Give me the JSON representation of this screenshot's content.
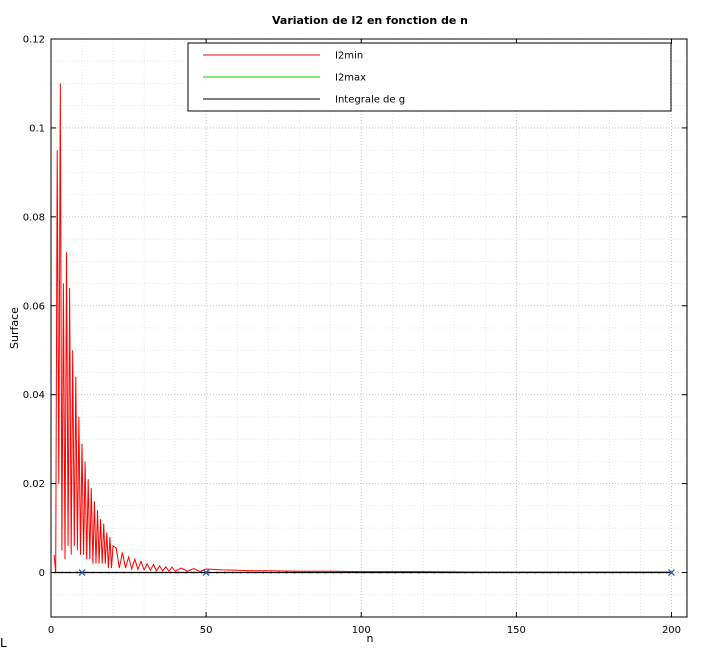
{
  "chart_data": {
    "type": "line",
    "title": "Variation de I2 en fonction de n",
    "xlabel": "n",
    "ylabel": "Surface",
    "xlim": [
      0,
      205
    ],
    "ylim": [
      -0.01,
      0.12
    ],
    "xticks": [
      0,
      50,
      100,
      150,
      200
    ],
    "xtick_labels": [
      "0",
      "50",
      "100",
      "150",
      "200"
    ],
    "yticks": [
      0,
      0.02,
      0.04,
      0.06,
      0.08,
      0.1,
      0.12
    ],
    "ytick_labels": [
      "0",
      "0.02",
      "0.04",
      "0.06",
      "0.08",
      "0.1",
      "0.12"
    ],
    "grid": true,
    "legend_position": "top-right",
    "series": [
      {
        "name": "I2min",
        "color": "#ff0000",
        "x": [
          1,
          1.5,
          2,
          2.5,
          3,
          3.5,
          4,
          4.5,
          5,
          5.5,
          6,
          6.5,
          7,
          7.5,
          8,
          8.5,
          9,
          9.5,
          10,
          10.5,
          11,
          11.5,
          12,
          12.5,
          13,
          13.5,
          14,
          14.5,
          15,
          15.5,
          16,
          16.5,
          17,
          17.5,
          18,
          18.5,
          19,
          19.5,
          20,
          21,
          22,
          23,
          24,
          25,
          26,
          27,
          28,
          29,
          30,
          31,
          32,
          33,
          34,
          35,
          36,
          37,
          38,
          39,
          40,
          42,
          44,
          46,
          48,
          50,
          55,
          60,
          65,
          70,
          80,
          90,
          100,
          120,
          140,
          160,
          180,
          200
        ],
        "values": [
          0.004,
          0.0,
          0.095,
          0.02,
          0.11,
          0.005,
          0.065,
          0.003,
          0.072,
          0.006,
          0.064,
          0.004,
          0.05,
          0.006,
          0.044,
          0.005,
          0.035,
          0.004,
          0.029,
          0.004,
          0.025,
          0.003,
          0.021,
          0.003,
          0.019,
          0.002,
          0.016,
          0.002,
          0.014,
          0.002,
          0.012,
          0.002,
          0.011,
          0.002,
          0.009,
          0.001,
          0.008,
          0.001,
          0.006,
          0.0055,
          0.001,
          0.0045,
          0.001,
          0.0035,
          0.0008,
          0.003,
          0.0007,
          0.0025,
          0.0006,
          0.002,
          0.0005,
          0.0018,
          0.0004,
          0.0015,
          0.0004,
          0.0013,
          0.0003,
          0.0012,
          0.0003,
          0.001,
          0.0003,
          0.0009,
          0.0002,
          0.0008,
          0.0006,
          0.0005,
          0.0004,
          0.0004,
          0.0003,
          0.0003,
          0.0002,
          0.0002,
          0.0001,
          0.0001,
          0.0001,
          0.0001
        ]
      },
      {
        "name": "I2max",
        "color": "#00cc00",
        "x": [
          1,
          200
        ],
        "values": [
          0,
          0
        ]
      },
      {
        "name": "Integrale de g",
        "color": "#000000",
        "x": [
          1,
          200
        ],
        "values": [
          0,
          0
        ]
      }
    ],
    "markers": {
      "color": "#1f4fbf",
      "x": [
        10,
        50,
        200
      ],
      "values": [
        0,
        0,
        0
      ]
    }
  },
  "footer_glyph": "L"
}
